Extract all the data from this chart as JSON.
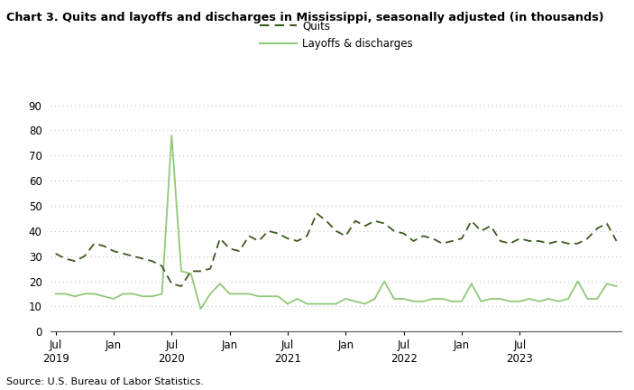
{
  "title": "Chart 3. Quits and layoffs and discharges in Mississippi, seasonally adjusted (in thousands)",
  "source": "Source: U.S. Bureau of Labor Statistics.",
  "legend_quits": "Quits",
  "legend_layoffs": "Layoffs & discharges",
  "ylim": [
    0,
    90
  ],
  "yticks": [
    0,
    10,
    20,
    30,
    40,
    50,
    60,
    70,
    80,
    90
  ],
  "background_color": "#ffffff",
  "grid_color": "#c8c8c8",
  "quits_color": "#3d5a1e",
  "layoffs_color": "#90c978",
  "quits": [
    31,
    29,
    28,
    30,
    35,
    34,
    32,
    31,
    30,
    29,
    28,
    26,
    19,
    18,
    24,
    24,
    25,
    37,
    33,
    32,
    38,
    36,
    40,
    39,
    37,
    36,
    38,
    47,
    44,
    40,
    38,
    44,
    42,
    44,
    43,
    40,
    39,
    36,
    38,
    37,
    35,
    36,
    37,
    44,
    40,
    42,
    36,
    35,
    37,
    36,
    36,
    35,
    36,
    35,
    35,
    37,
    41,
    43,
    36
  ],
  "layoffs": [
    15,
    15,
    14,
    15,
    15,
    14,
    13,
    15,
    15,
    14,
    14,
    15,
    78,
    24,
    23,
    9,
    15,
    19,
    15,
    15,
    15,
    14,
    14,
    14,
    11,
    13,
    11,
    11,
    11,
    11,
    13,
    12,
    11,
    13,
    20,
    13,
    13,
    12,
    12,
    13,
    13,
    12,
    12,
    19,
    12,
    13,
    13,
    12,
    12,
    13,
    12,
    13,
    12,
    13,
    20,
    13,
    13,
    19,
    18
  ]
}
